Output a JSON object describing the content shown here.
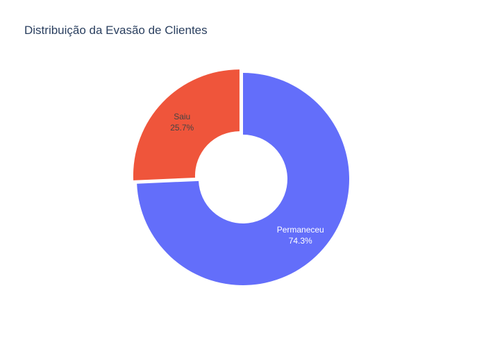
{
  "chart_data": {
    "type": "pie",
    "title": "Distribuição da Evasão de Clientes",
    "hole": true,
    "slices": [
      {
        "label": "Permaneceu",
        "value": 74.3,
        "percent_text": "74.3%",
        "color": "#636efa",
        "label_color": "#ffffff",
        "pulled": false
      },
      {
        "label": "Saiu",
        "value": 25.7,
        "percent_text": "25.7%",
        "color": "#ef553b",
        "label_color": "#444444",
        "pulled": true
      }
    ],
    "legend": false
  }
}
